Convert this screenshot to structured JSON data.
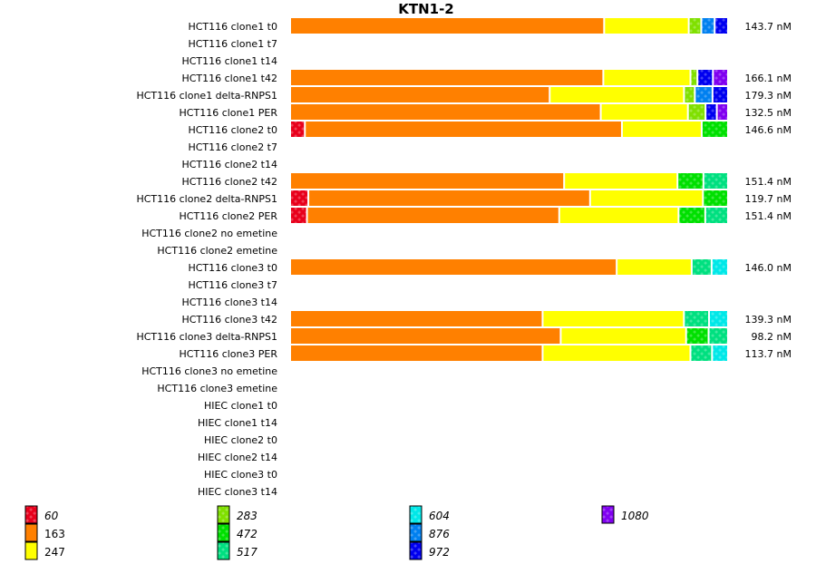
{
  "chart_data": {
    "type": "bar",
    "orientation": "horizontal-stacked-normalized",
    "title": "KTN1-2",
    "xlabel": "",
    "ylabel": "",
    "grid": false,
    "legend_position": "bottom",
    "unit_suffix": " nM",
    "legend": [
      {
        "key": "60",
        "color": "#e8001c",
        "patterned": true,
        "italic": true
      },
      {
        "key": "163",
        "color": "#ff8000",
        "patterned": false,
        "italic": false
      },
      {
        "key": "247",
        "color": "#ffff00",
        "patterned": false,
        "italic": false
      },
      {
        "key": "283",
        "color": "#80e000",
        "patterned": true,
        "italic": true
      },
      {
        "key": "472",
        "color": "#00e000",
        "patterned": true,
        "italic": true
      },
      {
        "key": "517",
        "color": "#00e080",
        "patterned": true,
        "italic": true
      },
      {
        "key": "604",
        "color": "#00e8e8",
        "patterned": true,
        "italic": true
      },
      {
        "key": "876",
        "color": "#0080f0",
        "patterned": true,
        "italic": true
      },
      {
        "key": "972",
        "color": "#0000f0",
        "patterned": true,
        "italic": true
      },
      {
        "key": "1080",
        "color": "#8000f0",
        "patterned": true,
        "italic": true
      }
    ],
    "rows": [
      {
        "label": "HCT116 clone1 t0",
        "total": "143.7 nM",
        "segments": [
          {
            "key": "163",
            "pct": 72.8
          },
          {
            "key": "247",
            "pct": 19.3
          },
          {
            "key": "283",
            "pct": 2.5
          },
          {
            "key": "876",
            "pct": 2.7
          },
          {
            "key": "972",
            "pct": 2.7
          }
        ]
      },
      {
        "label": "HCT116 clone1 t7",
        "total": "",
        "segments": []
      },
      {
        "label": "HCT116 clone1 t14",
        "total": "",
        "segments": []
      },
      {
        "label": "HCT116 clone1 t42",
        "total": "166.1 nM",
        "segments": [
          {
            "key": "163",
            "pct": 72.6
          },
          {
            "key": "247",
            "pct": 19.9
          },
          {
            "key": "283",
            "pct": 1.2
          },
          {
            "key": "972",
            "pct": 3.2
          },
          {
            "key": "1080",
            "pct": 3.1
          }
        ]
      },
      {
        "label": "HCT116 clone1 delta-RNPS1",
        "total": "179.3 nM",
        "segments": [
          {
            "key": "163",
            "pct": 60.1
          },
          {
            "key": "247",
            "pct": 30.9
          },
          {
            "key": "283",
            "pct": 2.1
          },
          {
            "key": "876",
            "pct": 3.7
          },
          {
            "key": "972",
            "pct": 3.2
          }
        ]
      },
      {
        "label": "HCT116 clone1 PER",
        "total": "132.5 nM",
        "segments": [
          {
            "key": "163",
            "pct": 72.0
          },
          {
            "key": "247",
            "pct": 19.9
          },
          {
            "key": "283",
            "pct": 3.7
          },
          {
            "key": "972",
            "pct": 2.2
          },
          {
            "key": "1080",
            "pct": 2.2
          }
        ]
      },
      {
        "label": "HCT116 clone2 t0",
        "total": "146.6 nM",
        "segments": [
          {
            "key": "60",
            "pct": 3.0
          },
          {
            "key": "163",
            "pct": 73.2
          },
          {
            "key": "247",
            "pct": 18.1
          },
          {
            "key": "472",
            "pct": 5.7
          }
        ]
      },
      {
        "label": "HCT116 clone2 t7",
        "total": "",
        "segments": []
      },
      {
        "label": "HCT116 clone2 t14",
        "total": "",
        "segments": []
      },
      {
        "label": "HCT116 clone2 t42",
        "total": "151.4 nM",
        "segments": [
          {
            "key": "163",
            "pct": 63.2
          },
          {
            "key": "247",
            "pct": 25.9
          },
          {
            "key": "472",
            "pct": 5.6
          },
          {
            "key": "517",
            "pct": 5.3
          }
        ]
      },
      {
        "label": "HCT116 clone2 delta-RNPS1",
        "total": "119.7 nM",
        "segments": [
          {
            "key": "60",
            "pct": 3.8
          },
          {
            "key": "163",
            "pct": 65.0
          },
          {
            "key": "247",
            "pct": 25.8
          },
          {
            "key": "472",
            "pct": 5.4
          }
        ]
      },
      {
        "label": "HCT116 clone2 PER",
        "total": "151.4 nM",
        "segments": [
          {
            "key": "60",
            "pct": 3.5
          },
          {
            "key": "163",
            "pct": 58.4
          },
          {
            "key": "247",
            "pct": 27.4
          },
          {
            "key": "472",
            "pct": 5.8
          },
          {
            "key": "517",
            "pct": 4.9
          }
        ]
      },
      {
        "label": "HCT116 clone2 no emetine",
        "total": "",
        "segments": []
      },
      {
        "label": "HCT116 clone2 emetine",
        "total": "",
        "segments": []
      },
      {
        "label": "HCT116 clone3 t0",
        "total": "146.0 nM",
        "segments": [
          {
            "key": "163",
            "pct": 75.4
          },
          {
            "key": "247",
            "pct": 17.0
          },
          {
            "key": "517",
            "pct": 4.2
          },
          {
            "key": "604",
            "pct": 3.4
          }
        ]
      },
      {
        "label": "HCT116 clone3 t7",
        "total": "",
        "segments": []
      },
      {
        "label": "HCT116 clone3 t14",
        "total": "",
        "segments": []
      },
      {
        "label": "HCT116 clone3 t42",
        "total": "139.3 nM",
        "segments": [
          {
            "key": "163",
            "pct": 58.2
          },
          {
            "key": "247",
            "pct": 32.4
          },
          {
            "key": "517",
            "pct": 5.4
          },
          {
            "key": "604",
            "pct": 4.0
          }
        ]
      },
      {
        "label": "HCT116 clone3 delta-RNPS1",
        "total": "98.2 nM",
        "segments": [
          {
            "key": "163",
            "pct": 62.4
          },
          {
            "key": "247",
            "pct": 28.7
          },
          {
            "key": "472",
            "pct": 4.8
          },
          {
            "key": "517",
            "pct": 4.1
          }
        ]
      },
      {
        "label": "HCT116 clone3 PER",
        "total": "113.7 nM",
        "segments": [
          {
            "key": "163",
            "pct": 58.2
          },
          {
            "key": "247",
            "pct": 33.9
          },
          {
            "key": "517",
            "pct": 4.6
          },
          {
            "key": "604",
            "pct": 3.3
          }
        ]
      },
      {
        "label": "HCT116 clone3 no emetine",
        "total": "",
        "segments": []
      },
      {
        "label": "HCT116 clone3 emetine",
        "total": "",
        "segments": []
      },
      {
        "label": "HIEC clone1 t0",
        "total": "",
        "segments": []
      },
      {
        "label": "HIEC clone1 t14",
        "total": "",
        "segments": []
      },
      {
        "label": "HIEC clone2 t0",
        "total": "",
        "segments": []
      },
      {
        "label": "HIEC clone2 t14",
        "total": "",
        "segments": []
      },
      {
        "label": "HIEC clone3 t0",
        "total": "",
        "segments": []
      },
      {
        "label": "HIEC clone3 t14",
        "total": "",
        "segments": []
      }
    ]
  }
}
